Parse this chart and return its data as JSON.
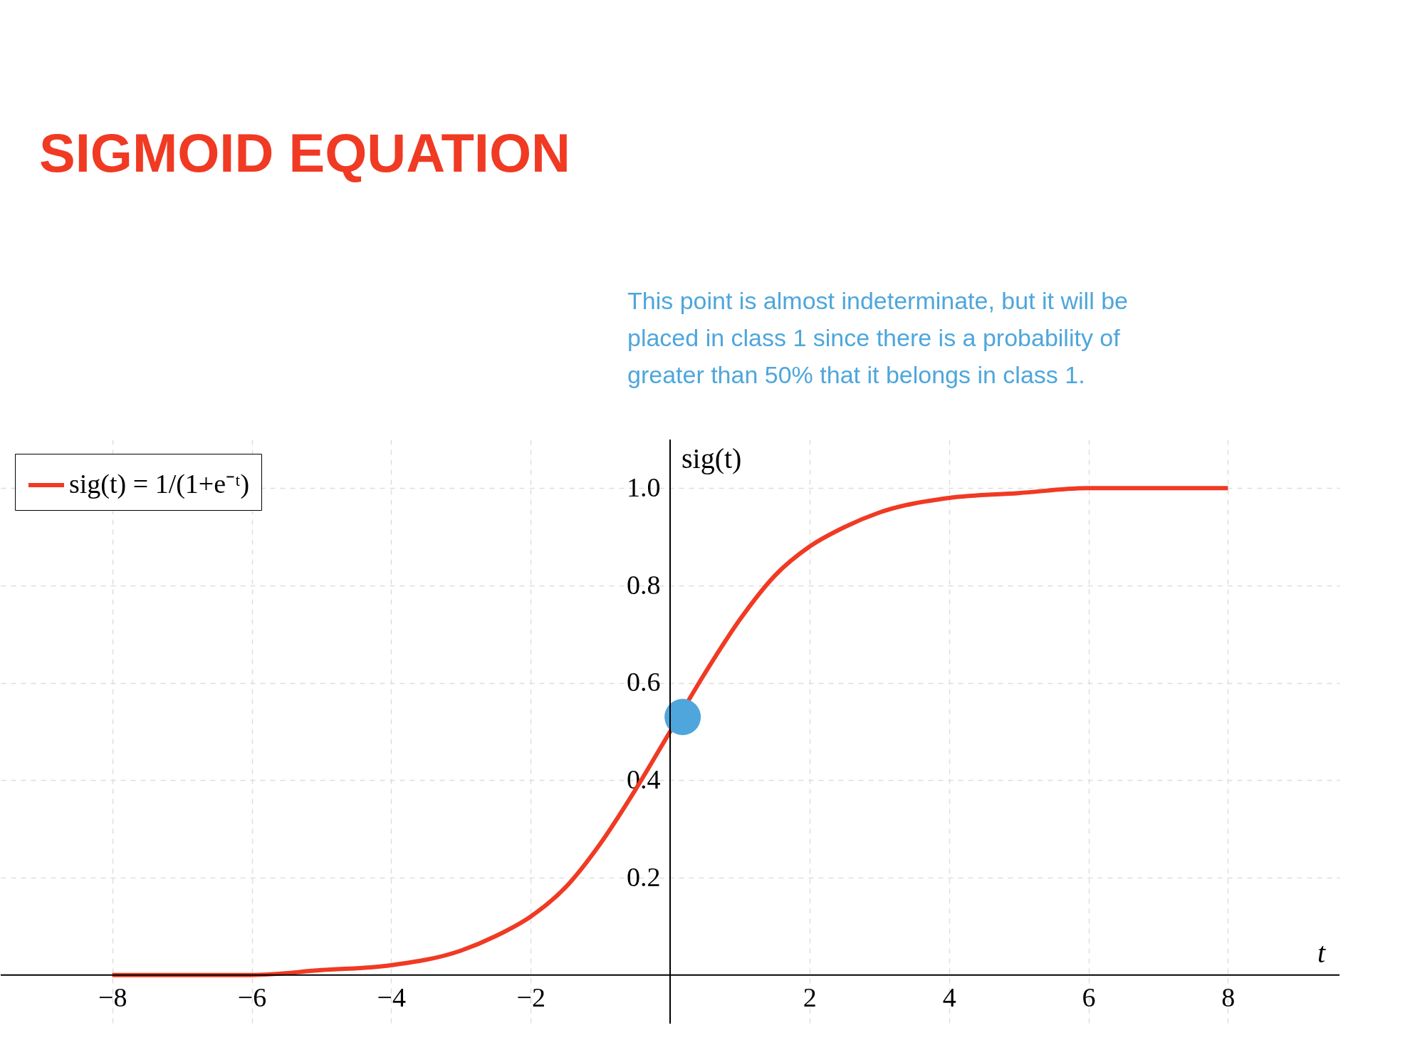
{
  "chart_data": {
    "type": "line",
    "title": "SIGMOID EQUATION",
    "annotations": [
      "This point is almost indeterminate, but it will be placed in class 1 since there is a probability of greater than 50% that it belongs in class 1."
    ],
    "xlabel": "t",
    "ylabel": "sig(t)",
    "xlim": [
      -9.6,
      9.6
    ],
    "ylim": [
      -0.1,
      1.1
    ],
    "xticks": [
      {
        "value": -8,
        "label": "−8"
      },
      {
        "value": -6,
        "label": "−6"
      },
      {
        "value": -4,
        "label": "−4"
      },
      {
        "value": -2,
        "label": "−2"
      },
      2,
      4,
      6,
      8
    ],
    "yticks": [
      0.2,
      0.4,
      0.6,
      0.8,
      {
        "value": 1,
        "label": "1.0"
      }
    ],
    "grid": true,
    "legend": "top left",
    "series": [
      {
        "name": "sig(t) = 1/(1+e⁻ᵗ)",
        "color": "#f03a23",
        "x": [
          -8,
          -7,
          -6,
          -5,
          -4,
          -3,
          -2.5,
          -2,
          -1.5,
          -1,
          -0.5,
          0,
          0.5,
          1,
          1.5,
          2,
          2.5,
          3,
          4,
          5,
          6,
          7,
          8
        ],
        "values": [
          0,
          0,
          0,
          0.01,
          0.02,
          0.05,
          0.08,
          0.12,
          0.18,
          0.27,
          0.38,
          0.5,
          0.62,
          0.73,
          0.82,
          0.88,
          0.92,
          0.95,
          0.98,
          0.99,
          1,
          1,
          1
        ]
      },
      {
        "type": "scatter",
        "color": "#4ea6dc",
        "x": [
          0.18
        ],
        "values": [
          0.53
        ]
      }
    ]
  }
}
